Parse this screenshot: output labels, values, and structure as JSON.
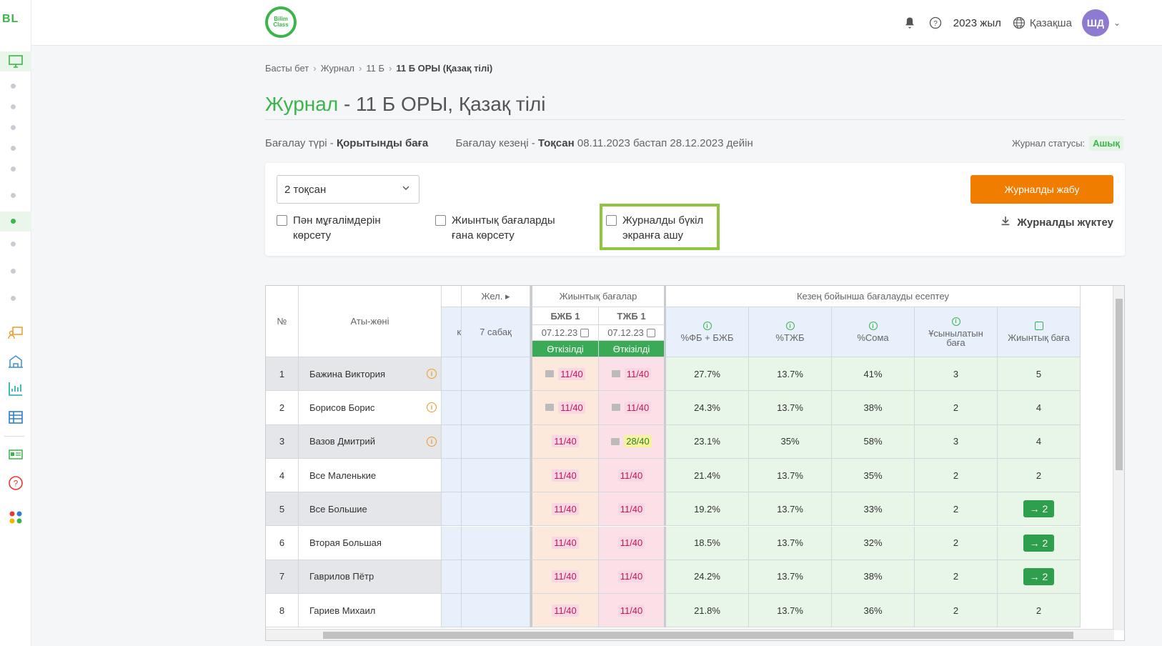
{
  "sidebar": {
    "logo": "BL",
    "toggle": ">"
  },
  "header": {
    "brand": "Bilim Class",
    "year": "2023 жыл",
    "language": "Қазақша",
    "avatar_initials": "ШД"
  },
  "breadcrumb": [
    "Басты бет",
    "Журнал",
    "11 Б",
    "11 Б ОРЫ (Қазақ тілі)"
  ],
  "page": {
    "title_prefix": "Журнал",
    "title_rest": " - 11 Б ОРЫ, Қазақ тілі",
    "grading_type_label": "Бағалау түрі - ",
    "grading_type_value": "Қорытынды баға",
    "period_label": "Бағалау кезеңі - ",
    "period_value": "Тоқсан",
    "period_range": " 08.11.2023 бастап 28.12.2023 дейін",
    "status_label": "Журнал статусы:",
    "status_value": "Ашық"
  },
  "filters": {
    "quarter_select": "2 тоқсан",
    "cb_teachers": "Пән мұғалімдерін көрсету",
    "cb_summative": "Жиынтық бағаларды ғана көрсету",
    "cb_fullscreen": "Журналды бүкіл экранға ашу",
    "close_button": "Журналды жабу",
    "download_link": "Журналды жүктеу"
  },
  "table": {
    "col_no": "№",
    "col_name": "Аты-жөні",
    "col_partial": "к",
    "col_wed": "Жел.",
    "col_lesson": "7 сабақ",
    "group_summative": "Жиынтық бағалар",
    "group_period": "Кезең бойынша бағалауды есептеу",
    "bzhb": "БЖБ 1",
    "tzhb": "ТЖБ 1",
    "bzhb_date": "07.12.23",
    "tzhb_date": "07.12.23",
    "done": "Өткізілді",
    "pct_fb": "%ФБ + БЖБ",
    "pct_tzhb": "%ТЖБ",
    "pct_sum": "%Сома",
    "recommended": "Ұсынылатын баға",
    "final": "Жиынтық баға",
    "rows": [
      {
        "n": "1",
        "name": "Бажина Виктория",
        "info": true,
        "b": "11/40",
        "bc": true,
        "t": "11/40",
        "tc": true,
        "ty": false,
        "fb": "27.7%",
        "tz": "13.7%",
        "sum": "41%",
        "rec": "3",
        "fin": "5",
        "btn": false
      },
      {
        "n": "2",
        "name": "Борисов Борис",
        "info": true,
        "b": "11/40",
        "bc": true,
        "t": "11/40",
        "tc": true,
        "ty": false,
        "fb": "24.3%",
        "tz": "13.7%",
        "sum": "38%",
        "rec": "2",
        "fin": "4",
        "btn": false
      },
      {
        "n": "3",
        "name": "Вазов Дмитрий",
        "info": true,
        "b": "11/40",
        "bc": false,
        "t": "28/40",
        "tc": true,
        "ty": true,
        "fb": "23.1%",
        "tz": "35%",
        "sum": "58%",
        "rec": "3",
        "fin": "4",
        "btn": false
      },
      {
        "n": "4",
        "name": "Все Маленькие",
        "info": false,
        "b": "11/40",
        "bc": false,
        "t": "11/40",
        "tc": false,
        "ty": false,
        "fb": "21.4%",
        "tz": "13.7%",
        "sum": "35%",
        "rec": "2",
        "fin": "2",
        "btn": false
      },
      {
        "n": "5",
        "name": "Все Большие",
        "info": false,
        "b": "11/40",
        "bc": false,
        "t": "11/40",
        "tc": false,
        "ty": false,
        "fb": "19.2%",
        "tz": "13.7%",
        "sum": "33%",
        "rec": "2",
        "fin": "→ 2",
        "btn": true
      },
      {
        "n": "6",
        "name": "Вторая Большая",
        "info": false,
        "b": "11/40",
        "bc": false,
        "t": "11/40",
        "tc": false,
        "ty": false,
        "fb": "18.5%",
        "tz": "13.7%",
        "sum": "32%",
        "rec": "2",
        "fin": "→ 2",
        "btn": true
      },
      {
        "n": "7",
        "name": "Гаврилов Пётр",
        "info": false,
        "b": "11/40",
        "bc": false,
        "t": "11/40",
        "tc": false,
        "ty": false,
        "fb": "24.2%",
        "tz": "13.7%",
        "sum": "38%",
        "rec": "2",
        "fin": "→ 2",
        "btn": true
      },
      {
        "n": "8",
        "name": "Гариев Михаил",
        "info": false,
        "b": "11/40",
        "bc": false,
        "t": "11/40",
        "tc": false,
        "ty": false,
        "fb": "21.8%",
        "tz": "13.7%",
        "sum": "36%",
        "rec": "2",
        "fin": "2",
        "btn": false
      }
    ]
  },
  "colors": {
    "brand_green": "#3bb54a",
    "orange": "#f07c00",
    "highlight": "#8fc63f"
  }
}
